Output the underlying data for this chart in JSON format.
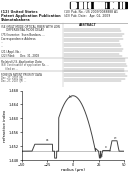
{
  "bg_color": "#ffffff",
  "line_color": "#444444",
  "hline_color": "#aaaaaa",
  "label_color": "#333333",
  "chart_ylabel": "refractive index",
  "chart_xlabel": "radius (μm)",
  "ylim": [
    1.448,
    1.468
  ],
  "xlim": [
    -50,
    50
  ],
  "ytick_vals": [
    1.448,
    1.452,
    1.456,
    1.46,
    1.464,
    1.468
  ],
  "xtick_vals": [
    -50,
    -25,
    0,
    25,
    50
  ],
  "n_clad": 1.4505,
  "n_peak": 1.4665,
  "n_trench": 1.4485,
  "n_ring": 1.4535,
  "n_step": 1.4525,
  "header_lines_left": [
    "(12) United States",
    "Patent Application Publication",
    "Shimotakahara"
  ],
  "header_pub_no": "(10) Pub. No.: US 2009/0088888 A1",
  "header_pub_date": "(43) Pub. Date:    Apr. 02, 2009",
  "title54": "(54) MULTIMODE OPTICAL FIBER WITH LOW",
  "title54b": "      DIFFERENTIAL MODE DELAY",
  "inventor75": "(75) Inventor:  Sven Bardson, ...",
  "corr_addr": "Correspondence Address:",
  "appl_no": "(21) Appl. No.:",
  "filed": "(22) Filed:",
  "abstract_label": "ABSTRACT"
}
